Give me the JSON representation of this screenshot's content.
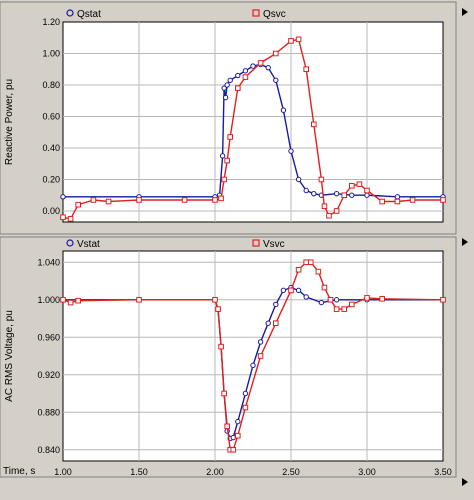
{
  "chart_data": [
    {
      "type": "line",
      "ylabel": "Reactive Power, pu",
      "xlim": [
        1.0,
        3.5
      ],
      "ylim": [
        -0.07,
        1.2
      ],
      "yticks": [
        0.0,
        0.2,
        0.4,
        0.6,
        0.8,
        1.0,
        1.2
      ],
      "ytick_labels": [
        "0.00",
        "0.20",
        "0.40",
        "0.60",
        "0.80",
        "1.00",
        "1.20"
      ],
      "grid": true,
      "legend": "top",
      "series": [
        {
          "name": "Qstat",
          "color": "#1a1aa0",
          "marker": "diamond",
          "x": [
            1.0,
            1.5,
            2.0,
            2.03,
            2.05,
            2.06,
            2.07,
            2.08,
            2.1,
            2.15,
            2.2,
            2.25,
            2.3,
            2.35,
            2.4,
            2.45,
            2.5,
            2.55,
            2.6,
            2.65,
            2.7,
            2.8,
            2.9,
            3.0,
            3.2,
            3.5
          ],
          "y": [
            0.09,
            0.09,
            0.09,
            0.1,
            0.35,
            0.78,
            0.72,
            0.8,
            0.83,
            0.86,
            0.89,
            0.92,
            0.93,
            0.91,
            0.83,
            0.64,
            0.38,
            0.2,
            0.13,
            0.11,
            0.1,
            0.11,
            0.1,
            0.1,
            0.09,
            0.09
          ]
        },
        {
          "name": "Qsvc",
          "color": "#e02020",
          "marker": "square",
          "x": [
            1.0,
            1.05,
            1.1,
            1.2,
            1.3,
            1.5,
            1.8,
            2.0,
            2.04,
            2.06,
            2.08,
            2.1,
            2.15,
            2.2,
            2.3,
            2.4,
            2.5,
            2.55,
            2.6,
            2.65,
            2.7,
            2.72,
            2.75,
            2.8,
            2.85,
            2.9,
            2.95,
            3.0,
            3.1,
            3.2,
            3.3,
            3.5
          ],
          "y": [
            -0.04,
            -0.05,
            0.04,
            0.07,
            0.06,
            0.07,
            0.07,
            0.07,
            0.08,
            0.2,
            0.32,
            0.47,
            0.78,
            0.85,
            0.94,
            1.0,
            1.08,
            1.09,
            0.9,
            0.55,
            0.2,
            0.03,
            -0.03,
            0.0,
            0.1,
            0.16,
            0.17,
            0.13,
            0.06,
            0.06,
            0.07,
            0.07
          ]
        }
      ]
    },
    {
      "type": "line",
      "xlabel": "Time, s",
      "ylabel": "AC RMS Voltage, pu",
      "xlim": [
        1.0,
        3.5
      ],
      "ylim": [
        0.828,
        1.052
      ],
      "xticks": [
        1.0,
        1.5,
        2.0,
        2.5,
        3.0,
        3.5
      ],
      "xtick_labels": [
        "1.00",
        "1.50",
        "2.00",
        "2.50",
        "3.00",
        "3.50"
      ],
      "yticks": [
        0.84,
        0.88,
        0.92,
        0.96,
        1.0,
        1.04
      ],
      "ytick_labels": [
        "0.840",
        "0.880",
        "0.920",
        "0.960",
        "1.000",
        "1.040"
      ],
      "grid": true,
      "legend": "top",
      "series": [
        {
          "name": "Vstat",
          "color": "#1a1aa0",
          "marker": "diamond",
          "x": [
            1.0,
            1.5,
            2.0,
            2.02,
            2.04,
            2.06,
            2.08,
            2.1,
            2.12,
            2.15,
            2.2,
            2.25,
            2.3,
            2.35,
            2.4,
            2.45,
            2.5,
            2.55,
            2.6,
            2.7,
            2.8,
            3.0,
            3.5
          ],
          "y": [
            1.0,
            1.0,
            1.0,
            0.99,
            0.95,
            0.9,
            0.86,
            0.852,
            0.853,
            0.87,
            0.9,
            0.93,
            0.955,
            0.975,
            0.995,
            1.01,
            1.013,
            1.01,
            1.003,
            0.997,
            1.0,
            1.0,
            1.0
          ]
        },
        {
          "name": "Vsvc",
          "color": "#e02020",
          "marker": "square",
          "x": [
            1.0,
            1.05,
            1.1,
            1.5,
            2.0,
            2.02,
            2.04,
            2.06,
            2.08,
            2.1,
            2.12,
            2.15,
            2.2,
            2.3,
            2.4,
            2.5,
            2.55,
            2.6,
            2.63,
            2.68,
            2.72,
            2.76,
            2.8,
            2.85,
            2.9,
            3.0,
            3.1,
            3.5
          ],
          "y": [
            1.0,
            0.997,
            0.999,
            1.0,
            1.0,
            0.99,
            0.95,
            0.9,
            0.865,
            0.84,
            0.84,
            0.855,
            0.885,
            0.94,
            0.975,
            1.01,
            1.032,
            1.04,
            1.04,
            1.03,
            1.013,
            1.0,
            0.99,
            0.99,
            0.995,
            1.002,
            1.001,
            1.0
          ]
        }
      ]
    }
  ]
}
